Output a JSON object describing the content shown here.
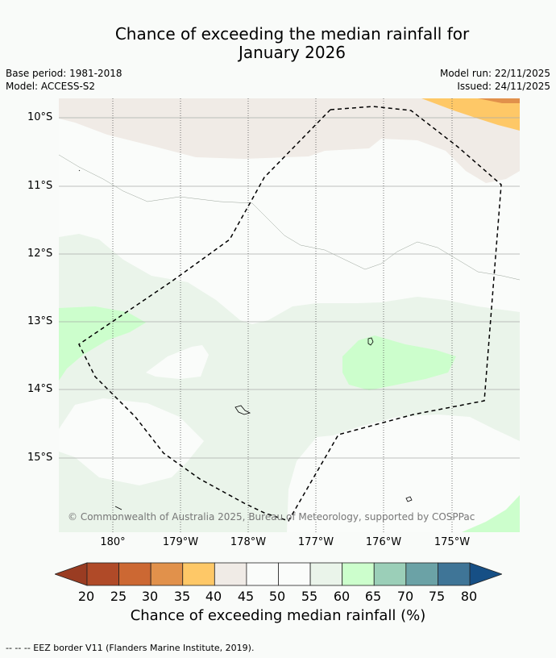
{
  "title": {
    "line1": "Chance of exceeding the median rainfall for",
    "line2": "January 2026"
  },
  "meta": {
    "base_period": "Base period: 1981-2018",
    "model": "Model: ACCESS-S2",
    "model_run": "Model run: 22/11/2025",
    "issued": "Issued: 24/11/2025"
  },
  "map": {
    "lat_labels": [
      "10°S",
      "11°S",
      "12°S",
      "13°S",
      "14°S",
      "15°S"
    ],
    "lon_labels": [
      "180°",
      "179°W",
      "178°W",
      "177°W",
      "176°W",
      "175°W"
    ],
    "copyright": "© Commonwealth of Australia 2025, Bureau of Meteorology, supported by COSPPac",
    "region_colors": {
      "35_40": "#fec867",
      "30_35": "#e1914b",
      "40_45": "#f0ebe6",
      "45_55": "#fafcfa",
      "55_60": "#eaf4ea",
      "60_65": "#ccfecc"
    }
  },
  "colorbar": {
    "colors": [
      "#b04a28",
      "#cc6833",
      "#e1914b",
      "#fec867",
      "#f0ebe6",
      "#fafcfa",
      "#fafcfa",
      "#eaf4ea",
      "#ccfecc",
      "#9bcfb8",
      "#6ba2a6",
      "#3f7597"
    ],
    "under_color": "#9a3c22",
    "over_color": "#164f85",
    "ticks": [
      "20",
      "25",
      "30",
      "35",
      "40",
      "45",
      "50",
      "55",
      "60",
      "65",
      "70",
      "75",
      "80"
    ],
    "label": "Chance of exceeding median rainfall (%)"
  },
  "footer": {
    "legend_text": "--  --  -- EEZ border V11 (Flanders Marine Institute, 2019)."
  }
}
